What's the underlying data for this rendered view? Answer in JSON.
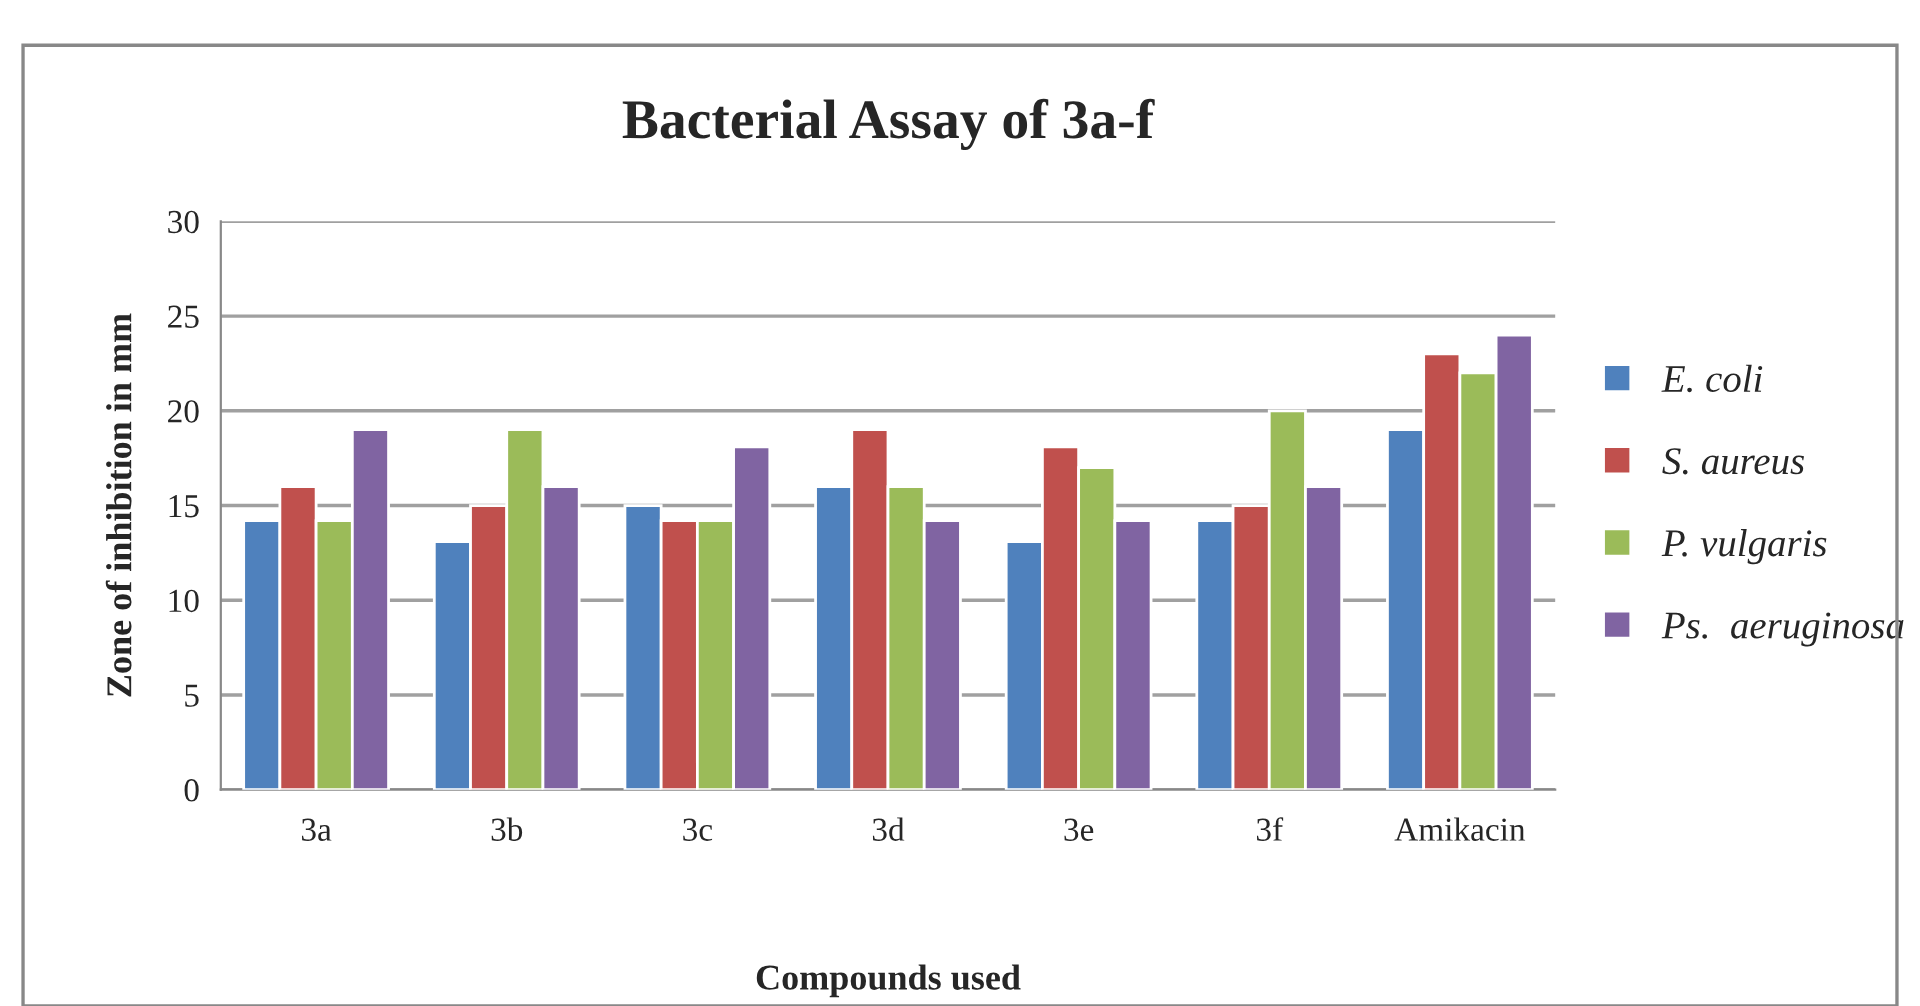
{
  "chart_data": {
    "type": "bar",
    "title": "Bacterial Assay of 3a-f",
    "xlabel": "Compounds used",
    "ylabel": "Zone of inhibition in mm",
    "categories": [
      "3a",
      "3b",
      "3c",
      "3d",
      "3e",
      "3f",
      "Amikacin"
    ],
    "series": [
      {
        "name": "E. coli",
        "color": "#4f81bd",
        "values": [
          14.2,
          13.1,
          15,
          16,
          13.1,
          14.2,
          19
        ]
      },
      {
        "name": "S. aureus",
        "color": "#c0504d",
        "values": [
          16,
          15,
          14.2,
          19,
          18.1,
          15,
          23
        ]
      },
      {
        "name": "P. vulgaris",
        "color": "#9bbb59",
        "values": [
          14.2,
          19,
          14.2,
          16,
          17,
          20,
          22
        ]
      },
      {
        "name": "Ps.  aeruginosa",
        "color": "#8064a2",
        "values": [
          19,
          16,
          18.1,
          14.2,
          14.2,
          16,
          24
        ]
      }
    ],
    "ylim": [
      0,
      30
    ],
    "yticks": [
      0,
      5,
      10,
      15,
      20,
      25,
      30
    ],
    "grid": "y",
    "legend": "right"
  }
}
